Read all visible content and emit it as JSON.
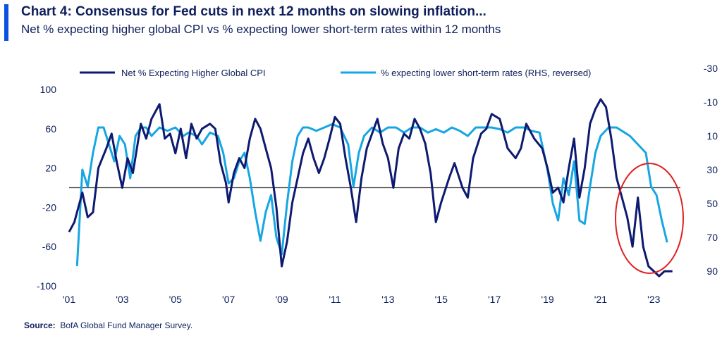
{
  "title": "Chart 4: Consensus for Fed cuts in next 12 months on slowing inflation...",
  "subtitle": "Net % expecting higher global CPI vs % expecting lower short-term rates within 12 months",
  "source_label": "Source:",
  "source_text": "BofA Global Fund Manager Survey.",
  "colors": {
    "series1": "#0d1a70",
    "series2": "#16a6e3",
    "zero_line": "#333333",
    "circle": "#e02020",
    "accent": "#0a52e0"
  },
  "chart_data": {
    "type": "line",
    "title": "Chart 4: Consensus for Fed cuts in next 12 months on slowing inflation...",
    "xlim": [
      2001,
      2024
    ],
    "ylim_left": [
      -100,
      100
    ],
    "ylim_right": [
      -30,
      90
    ],
    "right_axis_reversed": true,
    "x_ticks": [
      {
        "x": 2001,
        "label": "'01"
      },
      {
        "x": 2003,
        "label": "'03"
      },
      {
        "x": 2005,
        "label": "'05"
      },
      {
        "x": 2007,
        "label": "'07"
      },
      {
        "x": 2009,
        "label": "'09"
      },
      {
        "x": 2011,
        "label": "'11"
      },
      {
        "x": 2013,
        "label": "'13"
      },
      {
        "x": 2015,
        "label": "'15"
      },
      {
        "x": 2017,
        "label": "'17"
      },
      {
        "x": 2019,
        "label": "'19"
      },
      {
        "x": 2021,
        "label": "'21"
      },
      {
        "x": 2023,
        "label": "'23"
      }
    ],
    "y_left_ticks": [
      100,
      60,
      20,
      -20,
      -60,
      -100
    ],
    "y_right_ticks": [
      -30,
      -10,
      10,
      30,
      50,
      70,
      90
    ],
    "legend_position": "top",
    "series": [
      {
        "name": "Net % Expecting Higher Global CPI",
        "axis": "left",
        "points": [
          [
            2001.0,
            -45
          ],
          [
            2001.2,
            -35
          ],
          [
            2001.5,
            -5
          ],
          [
            2001.7,
            -30
          ],
          [
            2001.9,
            -25
          ],
          [
            2002.1,
            20
          ],
          [
            2002.4,
            40
          ],
          [
            2002.6,
            55
          ],
          [
            2002.8,
            25
          ],
          [
            2003.0,
            0
          ],
          [
            2003.2,
            30
          ],
          [
            2003.4,
            15
          ],
          [
            2003.7,
            65
          ],
          [
            2003.9,
            50
          ],
          [
            2004.1,
            70
          ],
          [
            2004.4,
            85
          ],
          [
            2004.6,
            50
          ],
          [
            2004.8,
            55
          ],
          [
            2005.0,
            35
          ],
          [
            2005.2,
            60
          ],
          [
            2005.4,
            30
          ],
          [
            2005.6,
            65
          ],
          [
            2005.8,
            50
          ],
          [
            2006.0,
            60
          ],
          [
            2006.3,
            65
          ],
          [
            2006.5,
            60
          ],
          [
            2006.7,
            25
          ],
          [
            2006.9,
            5
          ],
          [
            2007.0,
            -15
          ],
          [
            2007.2,
            15
          ],
          [
            2007.4,
            30
          ],
          [
            2007.6,
            20
          ],
          [
            2007.8,
            50
          ],
          [
            2008.0,
            70
          ],
          [
            2008.2,
            60
          ],
          [
            2008.4,
            40
          ],
          [
            2008.6,
            20
          ],
          [
            2008.8,
            -20
          ],
          [
            2009.0,
            -80
          ],
          [
            2009.2,
            -55
          ],
          [
            2009.4,
            -15
          ],
          [
            2009.6,
            10
          ],
          [
            2009.8,
            35
          ],
          [
            2010.0,
            50
          ],
          [
            2010.2,
            30
          ],
          [
            2010.4,
            15
          ],
          [
            2010.6,
            30
          ],
          [
            2010.8,
            50
          ],
          [
            2011.0,
            72
          ],
          [
            2011.2,
            65
          ],
          [
            2011.4,
            30
          ],
          [
            2011.6,
            0
          ],
          [
            2011.8,
            -35
          ],
          [
            2012.0,
            10
          ],
          [
            2012.2,
            40
          ],
          [
            2012.4,
            55
          ],
          [
            2012.6,
            70
          ],
          [
            2012.8,
            45
          ],
          [
            2013.0,
            30
          ],
          [
            2013.2,
            0
          ],
          [
            2013.4,
            40
          ],
          [
            2013.6,
            55
          ],
          [
            2013.8,
            50
          ],
          [
            2014.0,
            70
          ],
          [
            2014.2,
            60
          ],
          [
            2014.4,
            45
          ],
          [
            2014.6,
            15
          ],
          [
            2014.8,
            -35
          ],
          [
            2015.0,
            -15
          ],
          [
            2015.3,
            10
          ],
          [
            2015.5,
            25
          ],
          [
            2015.8,
            0
          ],
          [
            2016.0,
            -10
          ],
          [
            2016.2,
            30
          ],
          [
            2016.5,
            55
          ],
          [
            2016.7,
            60
          ],
          [
            2016.9,
            75
          ],
          [
            2017.2,
            70
          ],
          [
            2017.5,
            40
          ],
          [
            2017.8,
            30
          ],
          [
            2018.0,
            40
          ],
          [
            2018.2,
            65
          ],
          [
            2018.5,
            50
          ],
          [
            2018.8,
            40
          ],
          [
            2019.0,
            20
          ],
          [
            2019.2,
            -5
          ],
          [
            2019.4,
            0
          ],
          [
            2019.6,
            -15
          ],
          [
            2019.8,
            20
          ],
          [
            2020.0,
            50
          ],
          [
            2020.2,
            -10
          ],
          [
            2020.4,
            20
          ],
          [
            2020.6,
            65
          ],
          [
            2020.8,
            80
          ],
          [
            2021.0,
            90
          ],
          [
            2021.2,
            82
          ],
          [
            2021.4,
            50
          ],
          [
            2021.6,
            10
          ],
          [
            2021.8,
            -10
          ],
          [
            2022.0,
            -30
          ],
          [
            2022.2,
            -60
          ],
          [
            2022.4,
            -10
          ],
          [
            2022.6,
            -60
          ],
          [
            2022.8,
            -80
          ],
          [
            2023.0,
            -85
          ],
          [
            2023.2,
            -90
          ],
          [
            2023.4,
            -85
          ],
          [
            2023.7,
            -85
          ]
        ]
      },
      {
        "name": "% expecting lower short-term rates (RHS, reversed)",
        "axis": "right",
        "points": [
          [
            2001.3,
            87
          ],
          [
            2001.5,
            30
          ],
          [
            2001.7,
            40
          ],
          [
            2001.9,
            20
          ],
          [
            2002.1,
            5
          ],
          [
            2002.3,
            5
          ],
          [
            2002.5,
            15
          ],
          [
            2002.7,
            25
          ],
          [
            2002.9,
            10
          ],
          [
            2003.1,
            15
          ],
          [
            2003.3,
            35
          ],
          [
            2003.5,
            10
          ],
          [
            2003.7,
            5
          ],
          [
            2003.9,
            5
          ],
          [
            2004.1,
            10
          ],
          [
            2004.4,
            5
          ],
          [
            2004.7,
            7
          ],
          [
            2005.0,
            5
          ],
          [
            2005.3,
            10
          ],
          [
            2005.5,
            8
          ],
          [
            2005.8,
            10
          ],
          [
            2006.0,
            15
          ],
          [
            2006.3,
            8
          ],
          [
            2006.6,
            10
          ],
          [
            2006.8,
            20
          ],
          [
            2007.0,
            38
          ],
          [
            2007.2,
            35
          ],
          [
            2007.4,
            25
          ],
          [
            2007.6,
            20
          ],
          [
            2007.8,
            35
          ],
          [
            2008.0,
            55
          ],
          [
            2008.2,
            72
          ],
          [
            2008.4,
            55
          ],
          [
            2008.6,
            45
          ],
          [
            2008.8,
            70
          ],
          [
            2009.0,
            80
          ],
          [
            2009.2,
            50
          ],
          [
            2009.4,
            25
          ],
          [
            2009.6,
            10
          ],
          [
            2009.8,
            5
          ],
          [
            2010.0,
            5
          ],
          [
            2010.3,
            7
          ],
          [
            2010.6,
            5
          ],
          [
            2010.9,
            3
          ],
          [
            2011.2,
            5
          ],
          [
            2011.5,
            15
          ],
          [
            2011.7,
            40
          ],
          [
            2011.9,
            20
          ],
          [
            2012.1,
            10
          ],
          [
            2012.4,
            5
          ],
          [
            2012.7,
            8
          ],
          [
            2013.0,
            5
          ],
          [
            2013.3,
            5
          ],
          [
            2013.6,
            8
          ],
          [
            2013.9,
            5
          ],
          [
            2014.2,
            5
          ],
          [
            2014.5,
            8
          ],
          [
            2014.8,
            6
          ],
          [
            2015.1,
            8
          ],
          [
            2015.4,
            5
          ],
          [
            2015.7,
            7
          ],
          [
            2016.0,
            10
          ],
          [
            2016.3,
            5
          ],
          [
            2016.6,
            5
          ],
          [
            2016.9,
            5
          ],
          [
            2017.2,
            6
          ],
          [
            2017.5,
            8
          ],
          [
            2017.8,
            5
          ],
          [
            2018.1,
            5
          ],
          [
            2018.4,
            7
          ],
          [
            2018.7,
            8
          ],
          [
            2019.0,
            30
          ],
          [
            2019.2,
            50
          ],
          [
            2019.4,
            60
          ],
          [
            2019.6,
            35
          ],
          [
            2019.8,
            45
          ],
          [
            2020.0,
            25
          ],
          [
            2020.2,
            60
          ],
          [
            2020.4,
            62
          ],
          [
            2020.6,
            40
          ],
          [
            2020.8,
            20
          ],
          [
            2021.0,
            10
          ],
          [
            2021.3,
            5
          ],
          [
            2021.6,
            5
          ],
          [
            2021.9,
            8
          ],
          [
            2022.1,
            10
          ],
          [
            2022.4,
            15
          ],
          [
            2022.7,
            20
          ],
          [
            2022.9,
            40
          ],
          [
            2023.1,
            45
          ],
          [
            2023.3,
            60
          ],
          [
            2023.5,
            73
          ]
        ]
      }
    ],
    "annotations": [
      "red ellipse highlighting 2022-2023"
    ]
  }
}
